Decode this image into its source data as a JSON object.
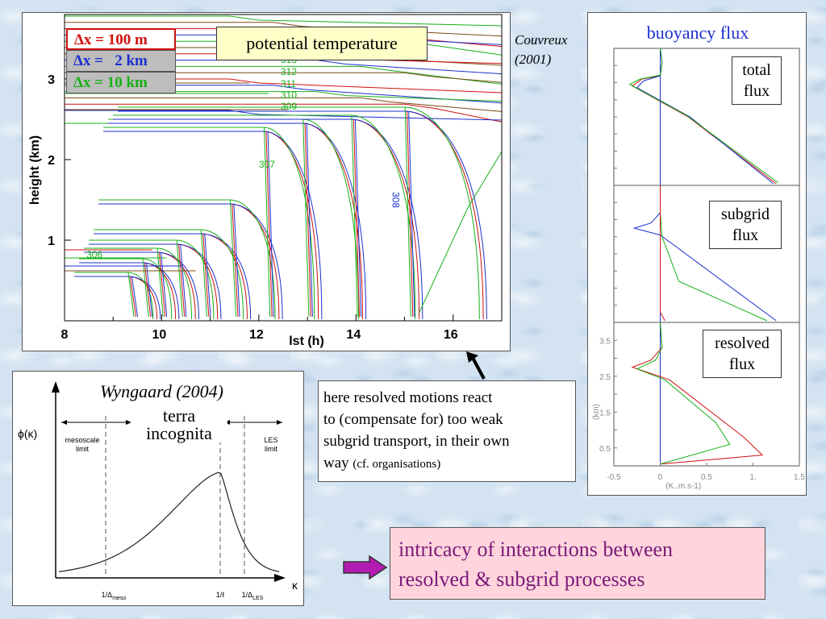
{
  "main_chart": {
    "label_box": "potential temperature",
    "legend": [
      {
        "label": "Δx = 100 m",
        "color": "#d01010"
      },
      {
        "label": "Δx =   2 km",
        "color": "#1c2fd0"
      },
      {
        "label": "Δx = 10 km",
        "color": "#18b018"
      }
    ],
    "citation_line1": "Couvreux",
    "citation_line2": "(2001)",
    "ylabel": "height (km)",
    "xlabel": "lst (h)",
    "y_ticks": [
      "1",
      "2",
      "3"
    ],
    "x_ticks": [
      "8",
      "10",
      "12",
      "14",
      "16"
    ],
    "contour_labels": [
      "306",
      "307",
      "308",
      "309",
      "310",
      "311",
      "312",
      "313"
    ]
  },
  "chart_data": [
    {
      "type": "line",
      "title": "potential temperature",
      "xlabel": "lst (h)",
      "ylabel": "height (km)",
      "xlim": [
        8,
        17
      ],
      "ylim": [
        0,
        3.8
      ],
      "series": [
        {
          "name": "Δx = 100 m"
        },
        {
          "name": "Δx =   2 km"
        },
        {
          "name": "Δx = 10 km"
        }
      ],
      "contour_levels": [
        306,
        307,
        308,
        309,
        310,
        311,
        312,
        313
      ]
    },
    {
      "type": "line",
      "title": "buoyancy flux",
      "panels": [
        "total flux",
        "subgrid flux",
        "resolved flux"
      ],
      "ylabel": "(km)",
      "xlabel": "(K..m.s-1)",
      "xlim": [
        -0.5,
        1.5
      ],
      "x_ticks": [
        "-0.5",
        "0",
        "0.5",
        "1.",
        "1.5"
      ],
      "y_ticks": [
        "0.5",
        "1.5",
        "2.5",
        "3.5"
      ],
      "series": [
        {
          "name": "Δx = 100 m",
          "color": "#d01010"
        },
        {
          "name": "Δx =   2 km",
          "color": "#1c2fd0"
        },
        {
          "name": "Δx = 10 km",
          "color": "#18b018"
        }
      ]
    },
    {
      "type": "line",
      "title": "Wyngaard (2004)",
      "xlabel": "κ",
      "ylabel": "ϕ(κ)",
      "x_ticks": [
        "1/Δmeso",
        "1/ℓ",
        "1/ΔLES"
      ]
    }
  ],
  "flux_chart": {
    "title": "buoyancy flux",
    "panel_labels": [
      {
        "line1": "total",
        "line2": "flux"
      },
      {
        "line1": "subgrid",
        "line2": "flux"
      },
      {
        "line1": "resolved",
        "line2": "flux"
      }
    ],
    "y_ticks": [
      "3.5",
      "2.5",
      "1.5",
      "0.5"
    ],
    "x_ticks": [
      "-0.5",
      "0",
      "0.5",
      "1.",
      "1.5"
    ],
    "ylabel": "(km)",
    "xunit": "(K..m.s-1)"
  },
  "spectrum_chart": {
    "citation": "Wyngaard (2004)",
    "caption_line1": "terra",
    "caption_line2": "incognita",
    "ylabel": "ϕ(κ)",
    "xlabel": "κ",
    "left_zone_line1": "mesoscale",
    "left_zone_line2": "limit",
    "right_zone_line1": "LES",
    "right_zone_line2": "limit",
    "tick_meso_prefix": "1/Δ",
    "tick_meso_sub": "meso",
    "tick_l": "1/ℓ",
    "tick_les_prefix": "1/Δ",
    "tick_les_sub": "LES"
  },
  "note": {
    "line1": "here resolved motions react",
    "line2": "to (compensate for) too weak",
    "line3": "subgrid transport, in their own",
    "line4_main": "way ",
    "line4_small": "(cf. organisations)"
  },
  "conclusion": {
    "line1": "intricacy of interactions between",
    "line2": "resolved & subgrid processes",
    "color": "#7a1a7a",
    "background": "#ffd4dc"
  }
}
